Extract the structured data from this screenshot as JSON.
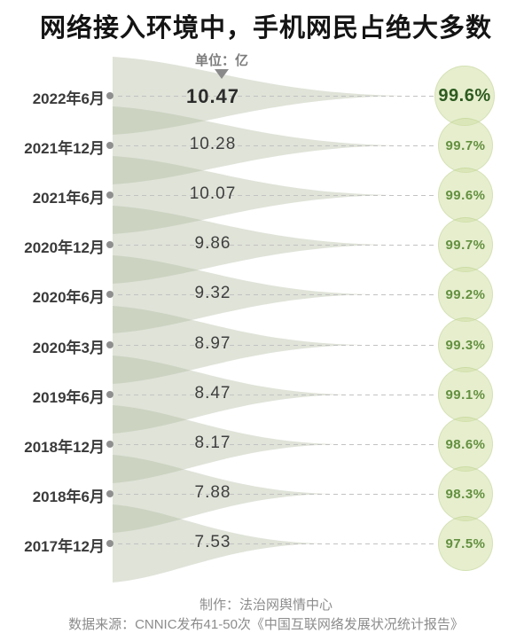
{
  "title": "网络接入环境中，手机网民占绝大多数",
  "unit_label": "单位：亿",
  "footer": {
    "credit": "制作：法治网舆情中心",
    "source": "数据来源：CNNIC发布41-50次《中国互联网络发展状况统计报告》"
  },
  "colors": {
    "funnel_fill": "rgba(178,188,162,0.42)",
    "funnel_flat": "#dee2d5",
    "bubble_fill": "#e6eece",
    "accent_dark_green": "#2d5b1f",
    "percent_green": "#63903f",
    "text_dark": "#3a3a3a",
    "muted_gray": "#8c8c8c",
    "dash_gray": "#c2c2c2"
  },
  "chart_data": {
    "type": "bar",
    "variant": "horizontal-teardrop-funnel",
    "title": "网络接入环境中，手机网民占绝大多数",
    "unit": "亿",
    "legend_position": "none",
    "grid": false,
    "categories": [
      "2022年6月",
      "2021年12月",
      "2021年6月",
      "2020年12月",
      "2020年6月",
      "2020年3月",
      "2019年6月",
      "2018年12月",
      "2018年6月",
      "2017年12月"
    ],
    "series": [
      {
        "name": "手机网民规模(亿)",
        "values": [
          10.47,
          10.28,
          10.07,
          9.86,
          9.32,
          8.97,
          8.47,
          8.17,
          7.88,
          7.53
        ]
      },
      {
        "name": "手机网民占比",
        "values": [
          "99.6%",
          "99.7%",
          "99.6%",
          "99.7%",
          "99.2%",
          "99.3%",
          "99.1%",
          "98.6%",
          "98.3%",
          "97.5%"
        ]
      }
    ],
    "rows": [
      {
        "date": "2022年6月",
        "value": "10.47",
        "percent": "99.6%"
      },
      {
        "date": "2021年12月",
        "value": "10.28",
        "percent": "99.7%"
      },
      {
        "date": "2021年6月",
        "value": "10.07",
        "percent": "99.6%"
      },
      {
        "date": "2020年12月",
        "value": "9.86",
        "percent": "99.7%"
      },
      {
        "date": "2020年6月",
        "value": "9.32",
        "percent": "99.2%"
      },
      {
        "date": "2020年3月",
        "value": "8.97",
        "percent": "99.3%"
      },
      {
        "date": "2019年6月",
        "value": "8.47",
        "percent": "99.1%"
      },
      {
        "date": "2018年12月",
        "value": "8.17",
        "percent": "98.6%"
      },
      {
        "date": "2018年6月",
        "value": "7.88",
        "percent": "98.3%"
      },
      {
        "date": "2017年12月",
        "value": "7.53",
        "percent": "97.5%"
      }
    ]
  }
}
